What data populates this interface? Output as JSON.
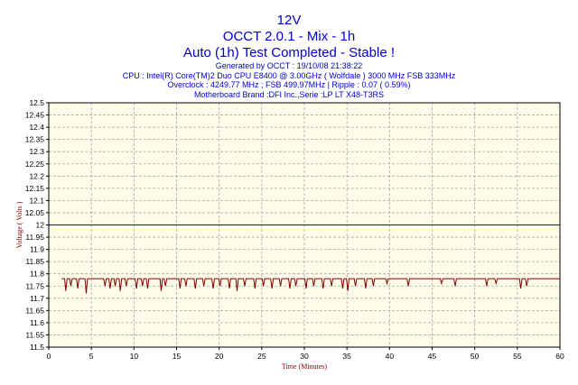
{
  "header": {
    "title": "12V",
    "subtitle": "OCCT 2.0.1 - Mix - 1h",
    "status": "Auto (1h) Test Completed - Stable !",
    "generated": "Generated by OCCT : 19/10/08 21:38:22",
    "cpu": "CPU : Intel(R) Core(TM)2 Duo CPU E8400 @ 3.00GHz ( Wolfdale ) 3000 MHz FSB 333MHz",
    "overclock": "Overclock : 4249.77 MHz ; FSB 499.97MHz | Ripple : 0.07 ( 0.59%)",
    "motherboard": "Motherboard Brand :DFI Inc.,Serie :LP LT X48-T3RS"
  },
  "chart_data": {
    "type": "line",
    "xlabel": "Time (Minutes)",
    "ylabel": "Voltage ( Volts )",
    "xlim": [
      0,
      60
    ],
    "ylim": [
      11.5,
      12.5
    ],
    "xticks": [
      0,
      5,
      10,
      15,
      20,
      25,
      30,
      35,
      40,
      45,
      50,
      55,
      60
    ],
    "yticks": [
      11.5,
      11.55,
      11.6,
      11.65,
      11.7,
      11.75,
      11.8,
      11.85,
      11.9,
      11.95,
      12,
      12.05,
      12.1,
      12.15,
      12.2,
      12.25,
      12.3,
      12.35,
      12.4,
      12.45,
      12.5
    ],
    "grid": true,
    "reference_line": 12.0,
    "baseline": 11.78,
    "dips": [
      {
        "x": 2.0,
        "y": 11.73
      },
      {
        "x": 2.6,
        "y": 11.75
      },
      {
        "x": 3.4,
        "y": 11.74
      },
      {
        "x": 4.4,
        "y": 11.72
      },
      {
        "x": 6.6,
        "y": 11.75
      },
      {
        "x": 7.2,
        "y": 11.74
      },
      {
        "x": 7.8,
        "y": 11.75
      },
      {
        "x": 8.4,
        "y": 11.73
      },
      {
        "x": 9.1,
        "y": 11.75
      },
      {
        "x": 10.3,
        "y": 11.74
      },
      {
        "x": 11.0,
        "y": 11.75
      },
      {
        "x": 11.6,
        "y": 11.74
      },
      {
        "x": 13.2,
        "y": 11.73
      },
      {
        "x": 13.7,
        "y": 11.75
      },
      {
        "x": 15.4,
        "y": 11.74
      },
      {
        "x": 16.1,
        "y": 11.75
      },
      {
        "x": 17.2,
        "y": 11.74
      },
      {
        "x": 18.2,
        "y": 11.75
      },
      {
        "x": 19.3,
        "y": 11.74
      },
      {
        "x": 20.1,
        "y": 11.75
      },
      {
        "x": 21.2,
        "y": 11.74
      },
      {
        "x": 22.1,
        "y": 11.73
      },
      {
        "x": 23.0,
        "y": 11.75
      },
      {
        "x": 24.2,
        "y": 11.74
      },
      {
        "x": 25.2,
        "y": 11.75
      },
      {
        "x": 26.2,
        "y": 11.74
      },
      {
        "x": 27.2,
        "y": 11.75
      },
      {
        "x": 28.3,
        "y": 11.74
      },
      {
        "x": 29.0,
        "y": 11.75
      },
      {
        "x": 30.2,
        "y": 11.74
      },
      {
        "x": 31.1,
        "y": 11.75
      },
      {
        "x": 32.2,
        "y": 11.74
      },
      {
        "x": 33.2,
        "y": 11.75
      },
      {
        "x": 34.5,
        "y": 11.74
      },
      {
        "x": 35.1,
        "y": 11.73
      },
      {
        "x": 36.0,
        "y": 11.75
      },
      {
        "x": 37.2,
        "y": 11.74
      },
      {
        "x": 38.1,
        "y": 11.75
      },
      {
        "x": 39.7,
        "y": 11.76
      },
      {
        "x": 42.2,
        "y": 11.75
      },
      {
        "x": 46.1,
        "y": 11.76
      },
      {
        "x": 47.7,
        "y": 11.75
      },
      {
        "x": 51.4,
        "y": 11.75
      },
      {
        "x": 52.5,
        "y": 11.76
      },
      {
        "x": 55.4,
        "y": 11.74
      },
      {
        "x": 56.1,
        "y": 11.75
      }
    ]
  },
  "colors": {
    "plot_background": "#fffde9",
    "grid": "#a8a8a8",
    "reference": "#0000ff",
    "series": "#800000",
    "title": "#0000cc",
    "axis_title": "#8b0000"
  }
}
